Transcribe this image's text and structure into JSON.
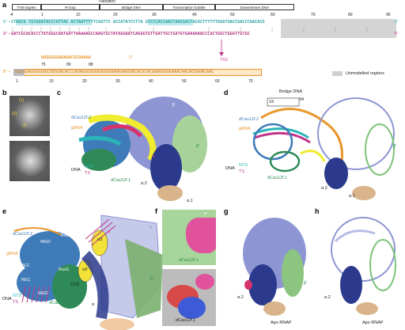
{
  "panel_a": {
    "letter": "a",
    "regions": [
      "TAM duplex",
      "R-loop",
      "Transition",
      "Bridge DNA",
      "Transcription bubble",
      "Downstream DNA"
    ],
    "top_ticks": [
      "-4",
      "1",
      "10",
      "20",
      "30",
      "40",
      "50",
      "60",
      "70",
      "80",
      "90"
    ],
    "nts_label": "5'-",
    "nts_seq": "CTAGCG TGTGGATACCCGTTAC ACTAATTTTTCGGTTC ACCATATCCTTA GTCCCACCAACTAACGACTACACTTTTTTGGGTGACCGACCCAACACG",
    "nts_end": "-3'",
    "ts_label": "3'-",
    "ts_seq": "GATCGCACACCCTATGGGCAATGATTAAAAAGCCAAGTGCTATAGGAATCAGGGTGTTGATTGCTGATGTGAAAAAACCCACTGGCTGGGTTGTGC",
    "ts_end": "-5'",
    "rna_label": "3'-",
    "rna_seq": "UUGUGGGAUAUACGCUAAAA",
    "rna_end": "-3'",
    "rna_ticks": [
      "75",
      "80",
      "88"
    ],
    "tss": "TSS",
    "grna_start": "5'-",
    "grna_seq": "UGGGGAGGGGUUGCUUGUACACCCAUAGGGGUGGUGGUUUAAGAAUUACACUCACUAAUGGUGAAACAACACUAUACAAC",
    "bottom_ticks": [
      "1",
      "10",
      "20",
      "30",
      "40",
      "50",
      "60",
      "70"
    ],
    "legend": "Unmodelled regions"
  },
  "panel_b": {
    "letter": "b",
    "labels": [
      "(1)",
      "(2)",
      "(3)"
    ]
  },
  "panel_c": {
    "letter": "c",
    "labels": {
      "dcas_top": "dCas12f.2",
      "grna": "gRNA",
      "dna": "DNA",
      "nts": "NTS",
      "ts": "TS",
      "dcas_bot": "dCas12f.1",
      "sigma": "σ",
      "alpha2": "α.2",
      "beta": "β",
      "beta_prime": "β'",
      "alpha1": "α.1"
    }
  },
  "panel_d": {
    "letter": "d",
    "labels": {
      "bridge": "Bridge DNA",
      "n19": "19",
      "n34": "34",
      "dcas_top": "dCas12f.2",
      "grna": "gRNA",
      "dna": "DNA",
      "nts": "NTS",
      "ts": "TS",
      "dcas_bot": "dCas12f.1",
      "alpha2": "α.2",
      "alpha1": "α.1",
      "beta": "β'"
    }
  },
  "panel_e": {
    "letter": "e",
    "labels": {
      "dcas_top": "dCas12f.2",
      "grna": "gRNA",
      "wed": "WED",
      "ruvc": "RuvC",
      "rec": "REC",
      "rec2": "REC",
      "ruvc2": "RuvC",
      "ctd": "CTD",
      "wed2": "WED",
      "dcas_bot": "dCas12f.1",
      "dna": "DNA",
      "nts": "NTS",
      "ts": "TS",
      "sigma": "σ",
      "sigma3": "σ3",
      "sigma2": "σ2",
      "beta": "β",
      "beta_prime": "β'",
      "alpha": "α"
    }
  },
  "panel_f": {
    "letter": "f",
    "labels": {
      "dcas": "dCas12f.1",
      "dcas2": "dCas12f.1",
      "sigma": "σ"
    }
  },
  "panel_g": {
    "letter": "g",
    "labels": {
      "alpha2": "α.2",
      "caption": "Apo RNAP",
      "beta": "β'"
    }
  },
  "panel_h": {
    "letter": "h",
    "labels": {
      "alpha2": "α.2",
      "caption": "Apo RNAP"
    }
  },
  "colors": {
    "nts": "#2bb5b8",
    "ts": "#c0338b",
    "grna": "#e8962a",
    "rnap": "#7b86c9",
    "sigma": "#f2e23a",
    "alpha": "#2b3a8c",
    "unmodelled": "#cfcfcf",
    "dcas2": "#3f7bb8",
    "dcas1": "#2e8b57"
  }
}
